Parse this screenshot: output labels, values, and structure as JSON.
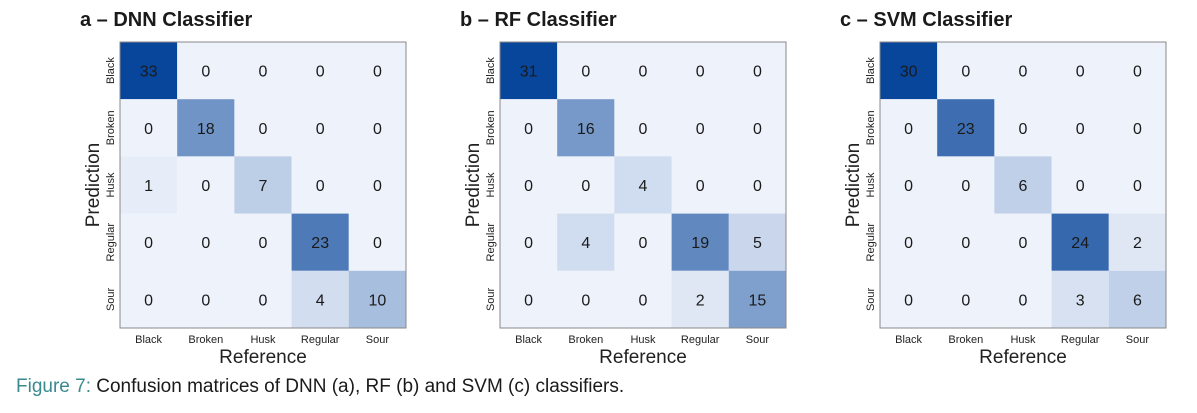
{
  "caption": {
    "label": "Figure 7:",
    "text": " Confusion matrices of DNN (a), RF (b) and SVM (c) classifiers."
  },
  "colors": {
    "low": "#eef2fb",
    "high": "#08469b",
    "border": "#888888",
    "dark_text": "#1a1a1a",
    "light_text": "#ffffff",
    "caption_label": "#3a8a8f"
  },
  "chart_data": [
    {
      "type": "heatmap",
      "title": "a – DNN Classifier",
      "xlabel": "Reference",
      "ylabel": "Prediction",
      "categories": [
        "Black",
        "Broken",
        "Husk",
        "Regular",
        "Sour"
      ],
      "rows": [
        "Black",
        "Broken",
        "Husk",
        "Regular",
        "Sour"
      ],
      "matrix": [
        [
          33,
          0,
          0,
          0,
          0
        ],
        [
          0,
          18,
          0,
          0,
          0
        ],
        [
          1,
          0,
          7,
          0,
          0
        ],
        [
          0,
          0,
          0,
          23,
          0
        ],
        [
          0,
          0,
          0,
          4,
          10
        ]
      ]
    },
    {
      "type": "heatmap",
      "title": "b – RF Classifier",
      "xlabel": "Reference",
      "ylabel": "Prediction",
      "categories": [
        "Black",
        "Broken",
        "Husk",
        "Regular",
        "Sour"
      ],
      "rows": [
        "Black",
        "Broken",
        "Husk",
        "Regular",
        "Sour"
      ],
      "matrix": [
        [
          31,
          0,
          0,
          0,
          0
        ],
        [
          0,
          16,
          0,
          0,
          0
        ],
        [
          0,
          0,
          4,
          0,
          0
        ],
        [
          0,
          4,
          0,
          19,
          5
        ],
        [
          0,
          0,
          0,
          2,
          15
        ]
      ]
    },
    {
      "type": "heatmap",
      "title": "c – SVM Classifier",
      "xlabel": "Reference",
      "ylabel": "Prediction",
      "categories": [
        "Black",
        "Broken",
        "Husk",
        "Regular",
        "Sour"
      ],
      "rows": [
        "Black",
        "Broken",
        "Husk",
        "Regular",
        "Sour"
      ],
      "matrix": [
        [
          30,
          0,
          0,
          0,
          0
        ],
        [
          0,
          23,
          0,
          0,
          0
        ],
        [
          0,
          0,
          6,
          0,
          0
        ],
        [
          0,
          0,
          0,
          24,
          2
        ],
        [
          0,
          0,
          0,
          3,
          6
        ]
      ]
    }
  ]
}
